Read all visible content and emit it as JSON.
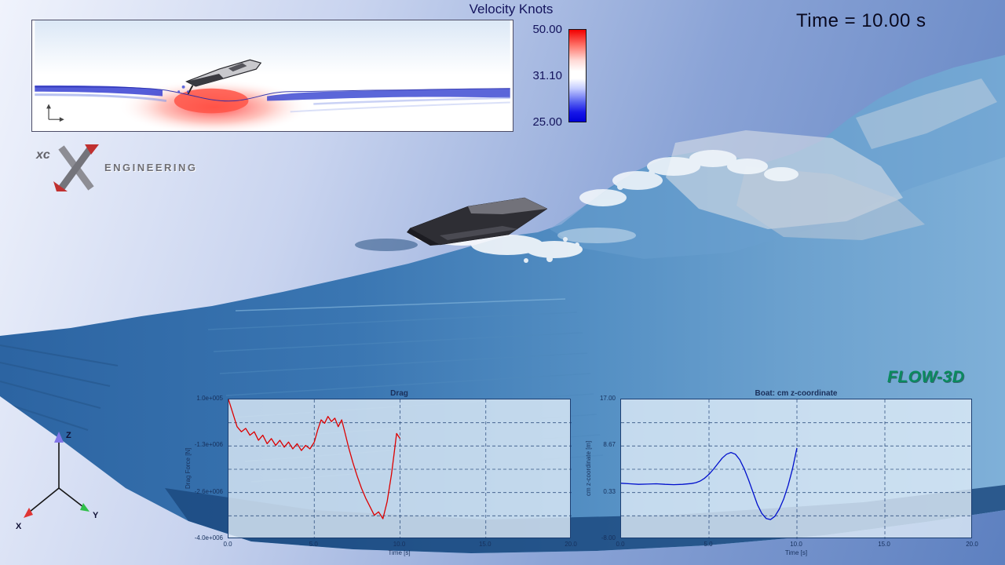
{
  "scene": {
    "time_label": "Time = 10.00 s"
  },
  "colorbar": {
    "title": "Velocity Knots",
    "ticks": [
      "50.00",
      "31.10",
      "25.00"
    ],
    "gradient_top": "#ff0000",
    "gradient_mid": "#ffffff",
    "gradient_bottom": "#0000d8"
  },
  "logos": {
    "xc_prefix": "xc",
    "xc_text": "ENGINEERING",
    "flow3d": "FLOW-3D"
  },
  "axis_triad": {
    "x": "X",
    "y": "Y",
    "z": "Z"
  },
  "chart_data": [
    {
      "id": "drag",
      "type": "line",
      "title": "Drag",
      "xlabel": "Time [s]",
      "ylabel": "Drag Force [N]",
      "xlim": [
        0,
        20
      ],
      "ylim": [
        -4000000,
        100000
      ],
      "xticks": [
        "0.0",
        "5.0",
        "10.0",
        "15.0",
        "20.0"
      ],
      "yticks": [
        "1.0e+005",
        "-1.3e+006",
        "-2.6e+006",
        "-4.0e+006"
      ],
      "grid": "dashed",
      "legend_position": "none",
      "line_color": "#dd0000",
      "x": [
        0,
        0.25,
        0.5,
        0.75,
        1,
        1.25,
        1.5,
        1.75,
        2,
        2.25,
        2.5,
        2.75,
        3,
        3.25,
        3.5,
        3.75,
        4,
        4.25,
        4.5,
        4.75,
        5,
        5.2,
        5.4,
        5.6,
        5.8,
        6,
        6.2,
        6.4,
        6.6,
        6.8,
        7,
        7.25,
        7.5,
        7.75,
        8,
        8.25,
        8.5,
        8.75,
        9,
        9.25,
        9.5,
        9.65,
        9.8,
        10
      ],
      "y": [
        100000,
        -300000,
        -700000,
        -850000,
        -750000,
        -950000,
        -850000,
        -1100000,
        -950000,
        -1200000,
        -1050000,
        -1250000,
        -1100000,
        -1300000,
        -1150000,
        -1350000,
        -1200000,
        -1400000,
        -1250000,
        -1350000,
        -1150000,
        -800000,
        -500000,
        -600000,
        -400000,
        -550000,
        -450000,
        -700000,
        -500000,
        -900000,
        -1300000,
        -1750000,
        -2150000,
        -2500000,
        -2800000,
        -3050000,
        -3300000,
        -3200000,
        -3400000,
        -2900000,
        -2100000,
        -1500000,
        -900000,
        -1050000
      ]
    },
    {
      "id": "boat-z",
      "type": "line",
      "title": "Boat: cm z-coordinate",
      "xlabel": "Time [s]",
      "ylabel": "cm z-coordinate [m]",
      "xlim": [
        0,
        20
      ],
      "ylim": [
        -8,
        17
      ],
      "xticks": [
        "0.0",
        "5.0",
        "10.0",
        "15.0",
        "20.0"
      ],
      "yticks": [
        "17.00",
        "8.67",
        "0.33",
        "-8.00"
      ],
      "grid": "dashed",
      "legend_position": "none",
      "line_color": "#0010cc",
      "x": [
        0,
        0.5,
        1,
        1.5,
        2,
        2.5,
        3,
        3.5,
        4,
        4.25,
        4.5,
        4.75,
        5,
        5.25,
        5.5,
        5.75,
        6,
        6.25,
        6.5,
        6.75,
        7,
        7.25,
        7.5,
        7.75,
        8,
        8.25,
        8.5,
        8.75,
        9,
        9.25,
        9.5,
        9.75,
        10
      ],
      "y": [
        2,
        1.9,
        1.8,
        1.85,
        1.9,
        1.8,
        1.75,
        1.8,
        1.95,
        2.1,
        2.4,
        2.9,
        3.6,
        4.5,
        5.5,
        6.5,
        7.2,
        7.5,
        7.2,
        6.2,
        4.6,
        2.6,
        0.4,
        -1.8,
        -3.4,
        -4.3,
        -4.5,
        -3.9,
        -2.6,
        -0.8,
        1.6,
        4.6,
        8.3
      ]
    }
  ]
}
